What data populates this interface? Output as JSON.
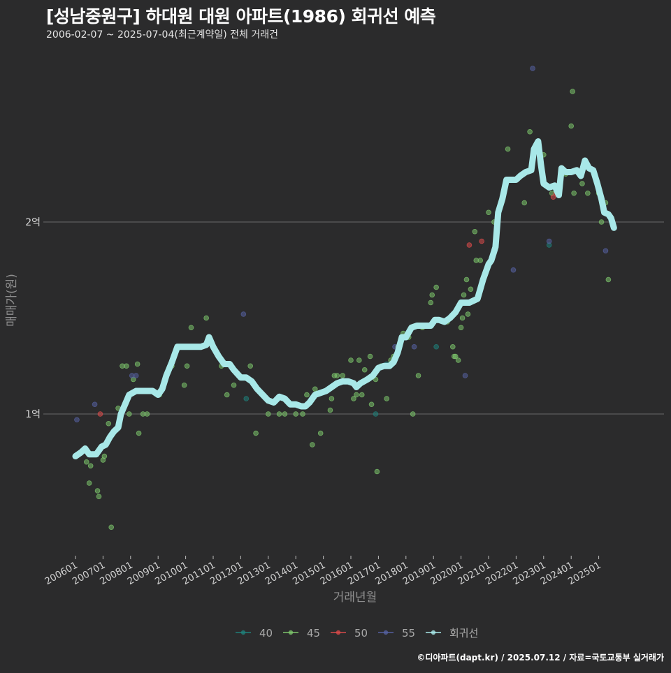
{
  "title": "[성남중원구] 하대원 대원 아파트(1986) 회귀선 예측",
  "subtitle": "2006-02-07 ~ 2025-07-04(최근계약일) 전체 거래건",
  "caption": "©디아파트(dapt.kr) / 2025.07.12 / 자료=국토교통부 실거래가",
  "colors": {
    "background": "#2b2b2c",
    "grid": "#6a6a6a",
    "regression": "#a8e8e8",
    "text": "#cfcfcf"
  },
  "chart_data": {
    "type": "scatter",
    "title": "[성남중원구] 하대원 대원 아파트(1986) 회귀선 예측",
    "xlabel": "거래년월",
    "ylabel": "매매가(원)",
    "x_ticks": [
      "200601",
      "200701",
      "200801",
      "200901",
      "201001",
      "201101",
      "201201",
      "201301",
      "201401",
      "201501",
      "201601",
      "201701",
      "201801",
      "201901",
      "202001",
      "202101",
      "202201",
      "202301",
      "202401",
      "202501"
    ],
    "y_ticks": [
      {
        "value": 1.0,
        "label": "1억"
      },
      {
        "value": 2.0,
        "label": "2억"
      }
    ],
    "xlim": [
      2006.0,
      2025.6
    ],
    "ylim": [
      0.3,
      2.95
    ],
    "y_unit": "억원",
    "grid": true,
    "legend_position": "bottom",
    "series": [
      {
        "name": "40",
        "color": "#1f7f7a",
        "points": [
          [
            2012.2,
            1.08
          ],
          [
            2016.9,
            1.0
          ],
          [
            2019.1,
            1.35
          ],
          [
            2017.3,
            1.26
          ],
          [
            2023.2,
            1.88
          ]
        ]
      },
      {
        "name": "45",
        "color": "#7cc46b",
        "points": [
          [
            2006.4,
            0.75
          ],
          [
            2006.5,
            0.64
          ],
          [
            2006.55,
            0.73
          ],
          [
            2006.8,
            0.6
          ],
          [
            2006.85,
            0.57
          ],
          [
            2007.0,
            0.76
          ],
          [
            2007.05,
            0.78
          ],
          [
            2007.2,
            0.95
          ],
          [
            2007.3,
            0.41
          ],
          [
            2007.55,
            1.03
          ],
          [
            2007.7,
            1.25
          ],
          [
            2007.85,
            1.25
          ],
          [
            2007.95,
            1.0
          ],
          [
            2008.1,
            1.18
          ],
          [
            2008.25,
            1.26
          ],
          [
            2008.3,
            0.9
          ],
          [
            2008.45,
            1.0
          ],
          [
            2008.6,
            1.0
          ],
          [
            2009.05,
            1.1
          ],
          [
            2009.5,
            1.25
          ],
          [
            2009.95,
            1.15
          ],
          [
            2010.05,
            1.25
          ],
          [
            2010.2,
            1.45
          ],
          [
            2010.6,
            1.35
          ],
          [
            2010.75,
            1.5
          ],
          [
            2011.3,
            1.25
          ],
          [
            2011.5,
            1.1
          ],
          [
            2011.75,
            1.15
          ],
          [
            2012.35,
            1.25
          ],
          [
            2012.55,
            0.9
          ],
          [
            2013.0,
            1.0
          ],
          [
            2013.4,
            1.0
          ],
          [
            2013.6,
            1.0
          ],
          [
            2013.85,
            1.05
          ],
          [
            2014.0,
            1.0
          ],
          [
            2014.25,
            1.0
          ],
          [
            2014.4,
            1.1
          ],
          [
            2014.6,
            0.84
          ],
          [
            2014.7,
            1.13
          ],
          [
            2014.9,
            0.9
          ],
          [
            2015.25,
            1.02
          ],
          [
            2015.3,
            1.08
          ],
          [
            2015.4,
            1.2
          ],
          [
            2015.5,
            1.2
          ],
          [
            2015.7,
            1.2
          ],
          [
            2016.0,
            1.28
          ],
          [
            2016.1,
            1.08
          ],
          [
            2016.2,
            1.1
          ],
          [
            2016.3,
            1.28
          ],
          [
            2016.4,
            1.1
          ],
          [
            2016.5,
            1.23
          ],
          [
            2016.7,
            1.3
          ],
          [
            2016.75,
            1.05
          ],
          [
            2016.9,
            1.18
          ],
          [
            2016.95,
            0.7
          ],
          [
            2017.1,
            1.25
          ],
          [
            2017.3,
            1.08
          ],
          [
            2017.45,
            1.28
          ],
          [
            2017.55,
            1.3
          ],
          [
            2017.7,
            1.35
          ],
          [
            2017.9,
            1.42
          ],
          [
            2018.1,
            1.4
          ],
          [
            2018.25,
            1.0
          ],
          [
            2018.45,
            1.2
          ],
          [
            2018.6,
            1.45
          ],
          [
            2018.9,
            1.58
          ],
          [
            2018.95,
            1.62
          ],
          [
            2019.1,
            1.66
          ],
          [
            2019.35,
            1.48
          ],
          [
            2019.5,
            1.48
          ],
          [
            2019.7,
            1.35
          ],
          [
            2019.75,
            1.3
          ],
          [
            2019.8,
            1.3
          ],
          [
            2019.9,
            1.28
          ],
          [
            2020.0,
            1.45
          ],
          [
            2020.05,
            1.5
          ],
          [
            2020.1,
            1.62
          ],
          [
            2020.2,
            1.7
          ],
          [
            2020.25,
            1.52
          ],
          [
            2020.35,
            1.65
          ],
          [
            2020.5,
            1.95
          ],
          [
            2020.55,
            1.8
          ],
          [
            2020.7,
            1.8
          ],
          [
            2021.0,
            2.05
          ],
          [
            2021.2,
            2.0
          ],
          [
            2021.7,
            2.38
          ],
          [
            2021.8,
            2.22
          ],
          [
            2022.3,
            2.1
          ],
          [
            2022.5,
            2.47
          ],
          [
            2023.0,
            2.35
          ],
          [
            2023.3,
            2.15
          ],
          [
            2023.5,
            2.15
          ],
          [
            2023.8,
            2.25
          ],
          [
            2024.0,
            2.5
          ],
          [
            2024.05,
            2.68
          ],
          [
            2024.1,
            2.15
          ],
          [
            2024.4,
            2.2
          ],
          [
            2024.6,
            2.15
          ],
          [
            2025.0,
            2.15
          ],
          [
            2025.1,
            2.0
          ],
          [
            2025.25,
            2.1
          ],
          [
            2025.35,
            1.7
          ]
        ]
      },
      {
        "name": "50",
        "color": "#d84a4a",
        "points": [
          [
            2006.9,
            1.0
          ],
          [
            2020.3,
            1.88
          ],
          [
            2020.75,
            1.9
          ],
          [
            2023.35,
            2.13
          ],
          [
            2023.45,
            2.15
          ]
        ]
      },
      {
        "name": "55",
        "color": "#5560a0",
        "points": [
          [
            2006.05,
            0.97
          ],
          [
            2006.7,
            1.05
          ],
          [
            2008.05,
            1.2
          ],
          [
            2008.2,
            1.2
          ],
          [
            2012.1,
            1.52
          ],
          [
            2017.6,
            1.35
          ],
          [
            2018.3,
            1.35
          ],
          [
            2020.15,
            1.2
          ],
          [
            2021.9,
            1.75
          ],
          [
            2022.6,
            2.8
          ],
          [
            2023.2,
            1.9
          ],
          [
            2025.25,
            1.85
          ]
        ]
      }
    ],
    "regression": {
      "name": "회귀선",
      "points": [
        [
          2006.0,
          0.78
        ],
        [
          2006.2,
          0.8
        ],
        [
          2006.35,
          0.82
        ],
        [
          2006.5,
          0.79
        ],
        [
          2006.75,
          0.79
        ],
        [
          2006.95,
          0.83
        ],
        [
          2007.1,
          0.84
        ],
        [
          2007.25,
          0.88
        ],
        [
          2007.4,
          0.91
        ],
        [
          2007.55,
          0.93
        ],
        [
          2007.65,
          1.0
        ],
        [
          2007.8,
          1.05
        ],
        [
          2007.95,
          1.1
        ],
        [
          2008.2,
          1.12
        ],
        [
          2008.5,
          1.12
        ],
        [
          2008.8,
          1.12
        ],
        [
          2009.0,
          1.1
        ],
        [
          2009.15,
          1.13
        ],
        [
          2009.3,
          1.2
        ],
        [
          2009.5,
          1.27
        ],
        [
          2009.7,
          1.35
        ],
        [
          2010.0,
          1.35
        ],
        [
          2010.3,
          1.35
        ],
        [
          2010.55,
          1.35
        ],
        [
          2010.75,
          1.36
        ],
        [
          2010.85,
          1.4
        ],
        [
          2011.0,
          1.35
        ],
        [
          2011.2,
          1.3
        ],
        [
          2011.4,
          1.26
        ],
        [
          2011.6,
          1.26
        ],
        [
          2011.75,
          1.23
        ],
        [
          2012.0,
          1.19
        ],
        [
          2012.2,
          1.19
        ],
        [
          2012.4,
          1.17
        ],
        [
          2012.6,
          1.13
        ],
        [
          2012.8,
          1.1
        ],
        [
          2013.0,
          1.07
        ],
        [
          2013.2,
          1.06
        ],
        [
          2013.4,
          1.09
        ],
        [
          2013.6,
          1.08
        ],
        [
          2013.8,
          1.05
        ],
        [
          2014.0,
          1.05
        ],
        [
          2014.2,
          1.04
        ],
        [
          2014.35,
          1.04
        ],
        [
          2014.5,
          1.06
        ],
        [
          2014.7,
          1.1
        ],
        [
          2014.9,
          1.11
        ],
        [
          2015.1,
          1.12
        ],
        [
          2015.3,
          1.14
        ],
        [
          2015.5,
          1.16
        ],
        [
          2015.7,
          1.17
        ],
        [
          2015.9,
          1.17
        ],
        [
          2016.1,
          1.16
        ],
        [
          2016.2,
          1.14
        ],
        [
          2016.35,
          1.16
        ],
        [
          2016.6,
          1.18
        ],
        [
          2016.8,
          1.2
        ],
        [
          2017.0,
          1.24
        ],
        [
          2017.2,
          1.25
        ],
        [
          2017.4,
          1.25
        ],
        [
          2017.55,
          1.27
        ],
        [
          2017.7,
          1.32
        ],
        [
          2017.85,
          1.4
        ],
        [
          2018.0,
          1.4
        ],
        [
          2018.2,
          1.45
        ],
        [
          2018.4,
          1.46
        ],
        [
          2018.7,
          1.46
        ],
        [
          2018.9,
          1.46
        ],
        [
          2019.05,
          1.49
        ],
        [
          2019.2,
          1.49
        ],
        [
          2019.4,
          1.48
        ],
        [
          2019.6,
          1.5
        ],
        [
          2019.8,
          1.53
        ],
        [
          2020.0,
          1.58
        ],
        [
          2020.3,
          1.58
        ],
        [
          2020.6,
          1.6
        ],
        [
          2020.8,
          1.7
        ],
        [
          2021.0,
          1.78
        ],
        [
          2021.1,
          1.8
        ],
        [
          2021.25,
          1.87
        ],
        [
          2021.35,
          2.05
        ],
        [
          2021.5,
          2.12
        ],
        [
          2021.65,
          2.22
        ],
        [
          2021.8,
          2.22
        ],
        [
          2022.0,
          2.22
        ],
        [
          2022.15,
          2.24
        ],
        [
          2022.35,
          2.26
        ],
        [
          2022.55,
          2.27
        ],
        [
          2022.65,
          2.38
        ],
        [
          2022.8,
          2.42
        ],
        [
          2022.9,
          2.3
        ],
        [
          2023.0,
          2.2
        ],
        [
          2023.2,
          2.18
        ],
        [
          2023.4,
          2.19
        ],
        [
          2023.55,
          2.14
        ],
        [
          2023.65,
          2.28
        ],
        [
          2023.8,
          2.26
        ],
        [
          2024.0,
          2.26
        ],
        [
          2024.2,
          2.27
        ],
        [
          2024.35,
          2.24
        ],
        [
          2024.5,
          2.32
        ],
        [
          2024.65,
          2.28
        ],
        [
          2024.8,
          2.27
        ],
        [
          2024.95,
          2.2
        ],
        [
          2025.1,
          2.12
        ],
        [
          2025.2,
          2.05
        ],
        [
          2025.35,
          2.04
        ],
        [
          2025.45,
          2.02
        ],
        [
          2025.55,
          1.97
        ]
      ]
    },
    "legend": [
      {
        "label": "40",
        "color": "#1f7f7a"
      },
      {
        "label": "45",
        "color": "#7cc46b"
      },
      {
        "label": "50",
        "color": "#d84a4a"
      },
      {
        "label": "55",
        "color": "#5560a0"
      },
      {
        "label": "회귀선",
        "color": "#a8e8e8"
      }
    ]
  }
}
